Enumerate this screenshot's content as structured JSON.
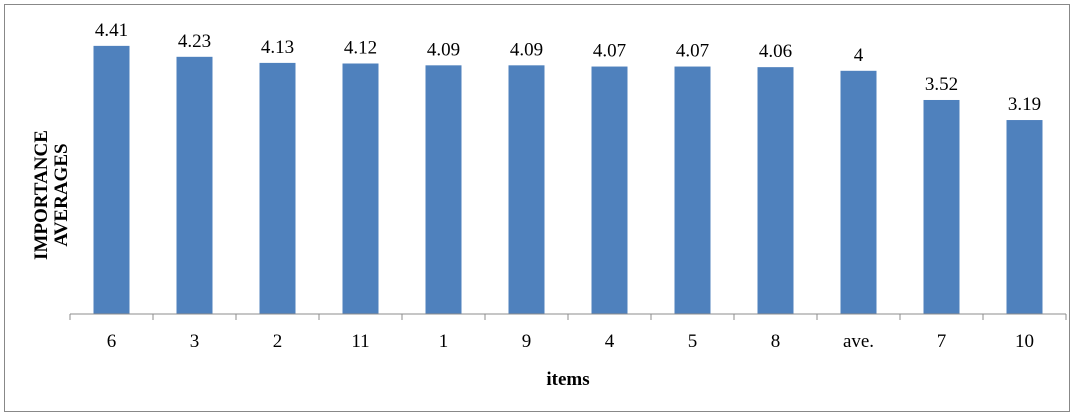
{
  "chart_data": {
    "type": "bar",
    "categories": [
      "6",
      "3",
      "2",
      "11",
      "1",
      "9",
      "4",
      "5",
      "8",
      "ave.",
      "7",
      "10"
    ],
    "values": [
      4.41,
      4.23,
      4.13,
      4.12,
      4.09,
      4.09,
      4.07,
      4.07,
      4.06,
      4,
      3.52,
      3.19
    ],
    "value_labels": [
      "4.41",
      "4.23",
      "4.13",
      "4.12",
      "4.09",
      "4.09",
      "4.07",
      "4.07",
      "4.06",
      "4",
      "3.52",
      "3.19"
    ],
    "xlabel": "items",
    "ylabel_lines": [
      "IMPORTANCE",
      "AVERAGES"
    ],
    "ylim": [
      0,
      5
    ],
    "bar_color": "#4F81BD",
    "grid": false,
    "legend": "none"
  }
}
